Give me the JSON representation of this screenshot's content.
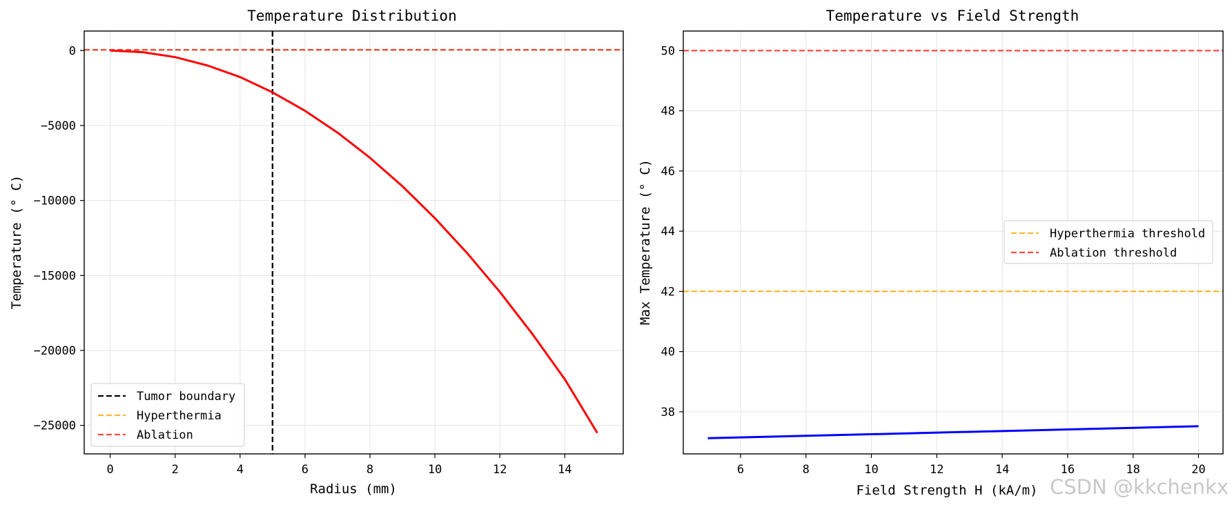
{
  "chart_data": [
    {
      "type": "line",
      "title": "Temperature Distribution",
      "xlabel": "Radius (mm)",
      "ylabel": "Temperature (° C)",
      "xlim": [
        -0.8,
        15.8
      ],
      "ylim": [
        -26900,
        1300
      ],
      "xticks": [
        0,
        2,
        4,
        6,
        8,
        10,
        12,
        14
      ],
      "yticks": [
        0,
        -5000,
        -10000,
        -15000,
        -20000,
        -25000
      ],
      "xtick_labels": [
        "0",
        "2",
        "4",
        "6",
        "8",
        "10",
        "12",
        "14"
      ],
      "ytick_labels": [
        "0",
        "−5000",
        "−10000",
        "−15000",
        "−20000",
        "−25000"
      ],
      "grid": true,
      "series": [
        {
          "name": "Temperature",
          "color": "#ff0000",
          "x": [
            0,
            1,
            2,
            3,
            4,
            5,
            6,
            7,
            8,
            9,
            10,
            11,
            12,
            13,
            14,
            15
          ],
          "y": [
            0,
            -110,
            -440,
            -1000,
            -1770,
            -2790,
            -4020,
            -5470,
            -7150,
            -9050,
            -11180,
            -13530,
            -16100,
            -18900,
            -21920,
            -25500
          ]
        }
      ],
      "vlines": [
        {
          "name": "Tumor boundary",
          "x": 5,
          "color": "#000000"
        }
      ],
      "hlines": [
        {
          "name": "Hyperthermia",
          "y": 42,
          "color": "#ffa500"
        },
        {
          "name": "Ablation",
          "y": 50,
          "color": "#ff3333"
        }
      ],
      "legend": {
        "position": "lower-left",
        "entries": [
          {
            "label": "Tumor boundary",
            "color": "#000000"
          },
          {
            "label": "Hyperthermia",
            "color": "#ffa500"
          },
          {
            "label": "Ablation",
            "color": "#ff3333"
          }
        ]
      }
    },
    {
      "type": "line",
      "title": "Temperature vs Field Strength",
      "xlabel": "Field Strength H (kA/m)",
      "ylabel": "Max Temperature (° C)",
      "xlim": [
        4.25,
        20.75
      ],
      "ylim": [
        36.6,
        50.65
      ],
      "xticks": [
        6,
        8,
        10,
        12,
        14,
        16,
        18,
        20
      ],
      "yticks": [
        38,
        40,
        42,
        44,
        46,
        48,
        50
      ],
      "xtick_labels": [
        "6",
        "8",
        "10",
        "12",
        "14",
        "16",
        "18",
        "20"
      ],
      "ytick_labels": [
        "38",
        "40",
        "42",
        "44",
        "46",
        "48",
        "50"
      ],
      "grid": true,
      "series": [
        {
          "name": "Max Temperature",
          "color": "#0000ff",
          "x": [
            5,
            20
          ],
          "y": [
            37.12,
            37.52
          ]
        }
      ],
      "hlines": [
        {
          "name": "Hyperthermia threshold",
          "y": 42,
          "color": "#ffa500"
        },
        {
          "name": "Ablation threshold",
          "y": 50,
          "color": "#ff3333"
        }
      ],
      "legend": {
        "position": "center-right",
        "entries": [
          {
            "label": "Hyperthermia threshold",
            "color": "#ffa500"
          },
          {
            "label": "Ablation threshold",
            "color": "#ff3333"
          }
        ]
      }
    }
  ],
  "watermark": "CSDN @kkchenkx"
}
